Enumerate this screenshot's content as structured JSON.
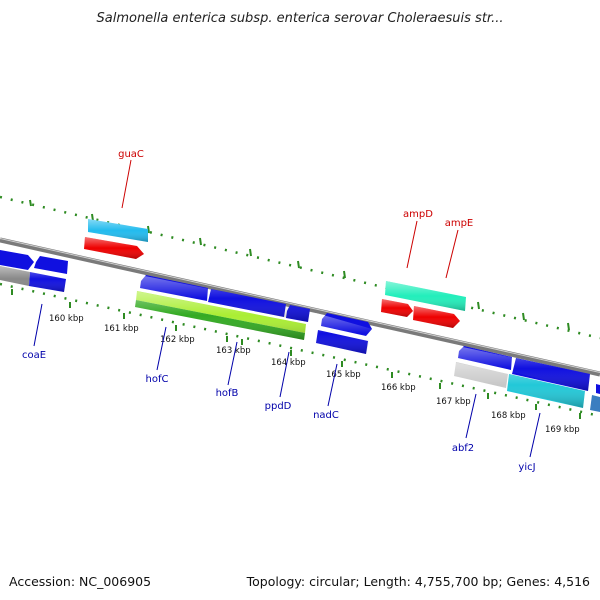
{
  "title": "Salmonella enterica subsp. enterica serovar Choleraesuis str...",
  "footer": {
    "accession": "Accession: NC_006905",
    "summary": "Topology: circular; Length: 4,755,700 bp; Genes: 4,516"
  },
  "colors": {
    "backbone": "#7a7a7a",
    "tick_green": "#2e8b22",
    "label_red": "#cc0000",
    "label_blue": "#0000aa",
    "gene_blue": "#1010e0",
    "gene_red": "#ee0000",
    "gene_cyan": "#22bbee",
    "gene_teal": "#22eebb",
    "gene_lime": "#aaee33",
    "gene_green": "#33aa22",
    "gene_gray": "#888888",
    "gene_lightgray": "#c8c8c8"
  },
  "kbp_labels": [
    "160 kbp",
    "161 kbp",
    "162 kbp",
    "163 kbp",
    "164 kbp",
    "165 kbp",
    "166 kbp",
    "167 kbp",
    "168 kbp",
    "169 kbp"
  ],
  "gene_labels": {
    "top": [
      "guaC",
      "ampD",
      "ampE"
    ],
    "bottom": [
      "coaE",
      "hofC",
      "hofB",
      "ppdD",
      "nadC",
      "abf2",
      "yicJ"
    ]
  }
}
